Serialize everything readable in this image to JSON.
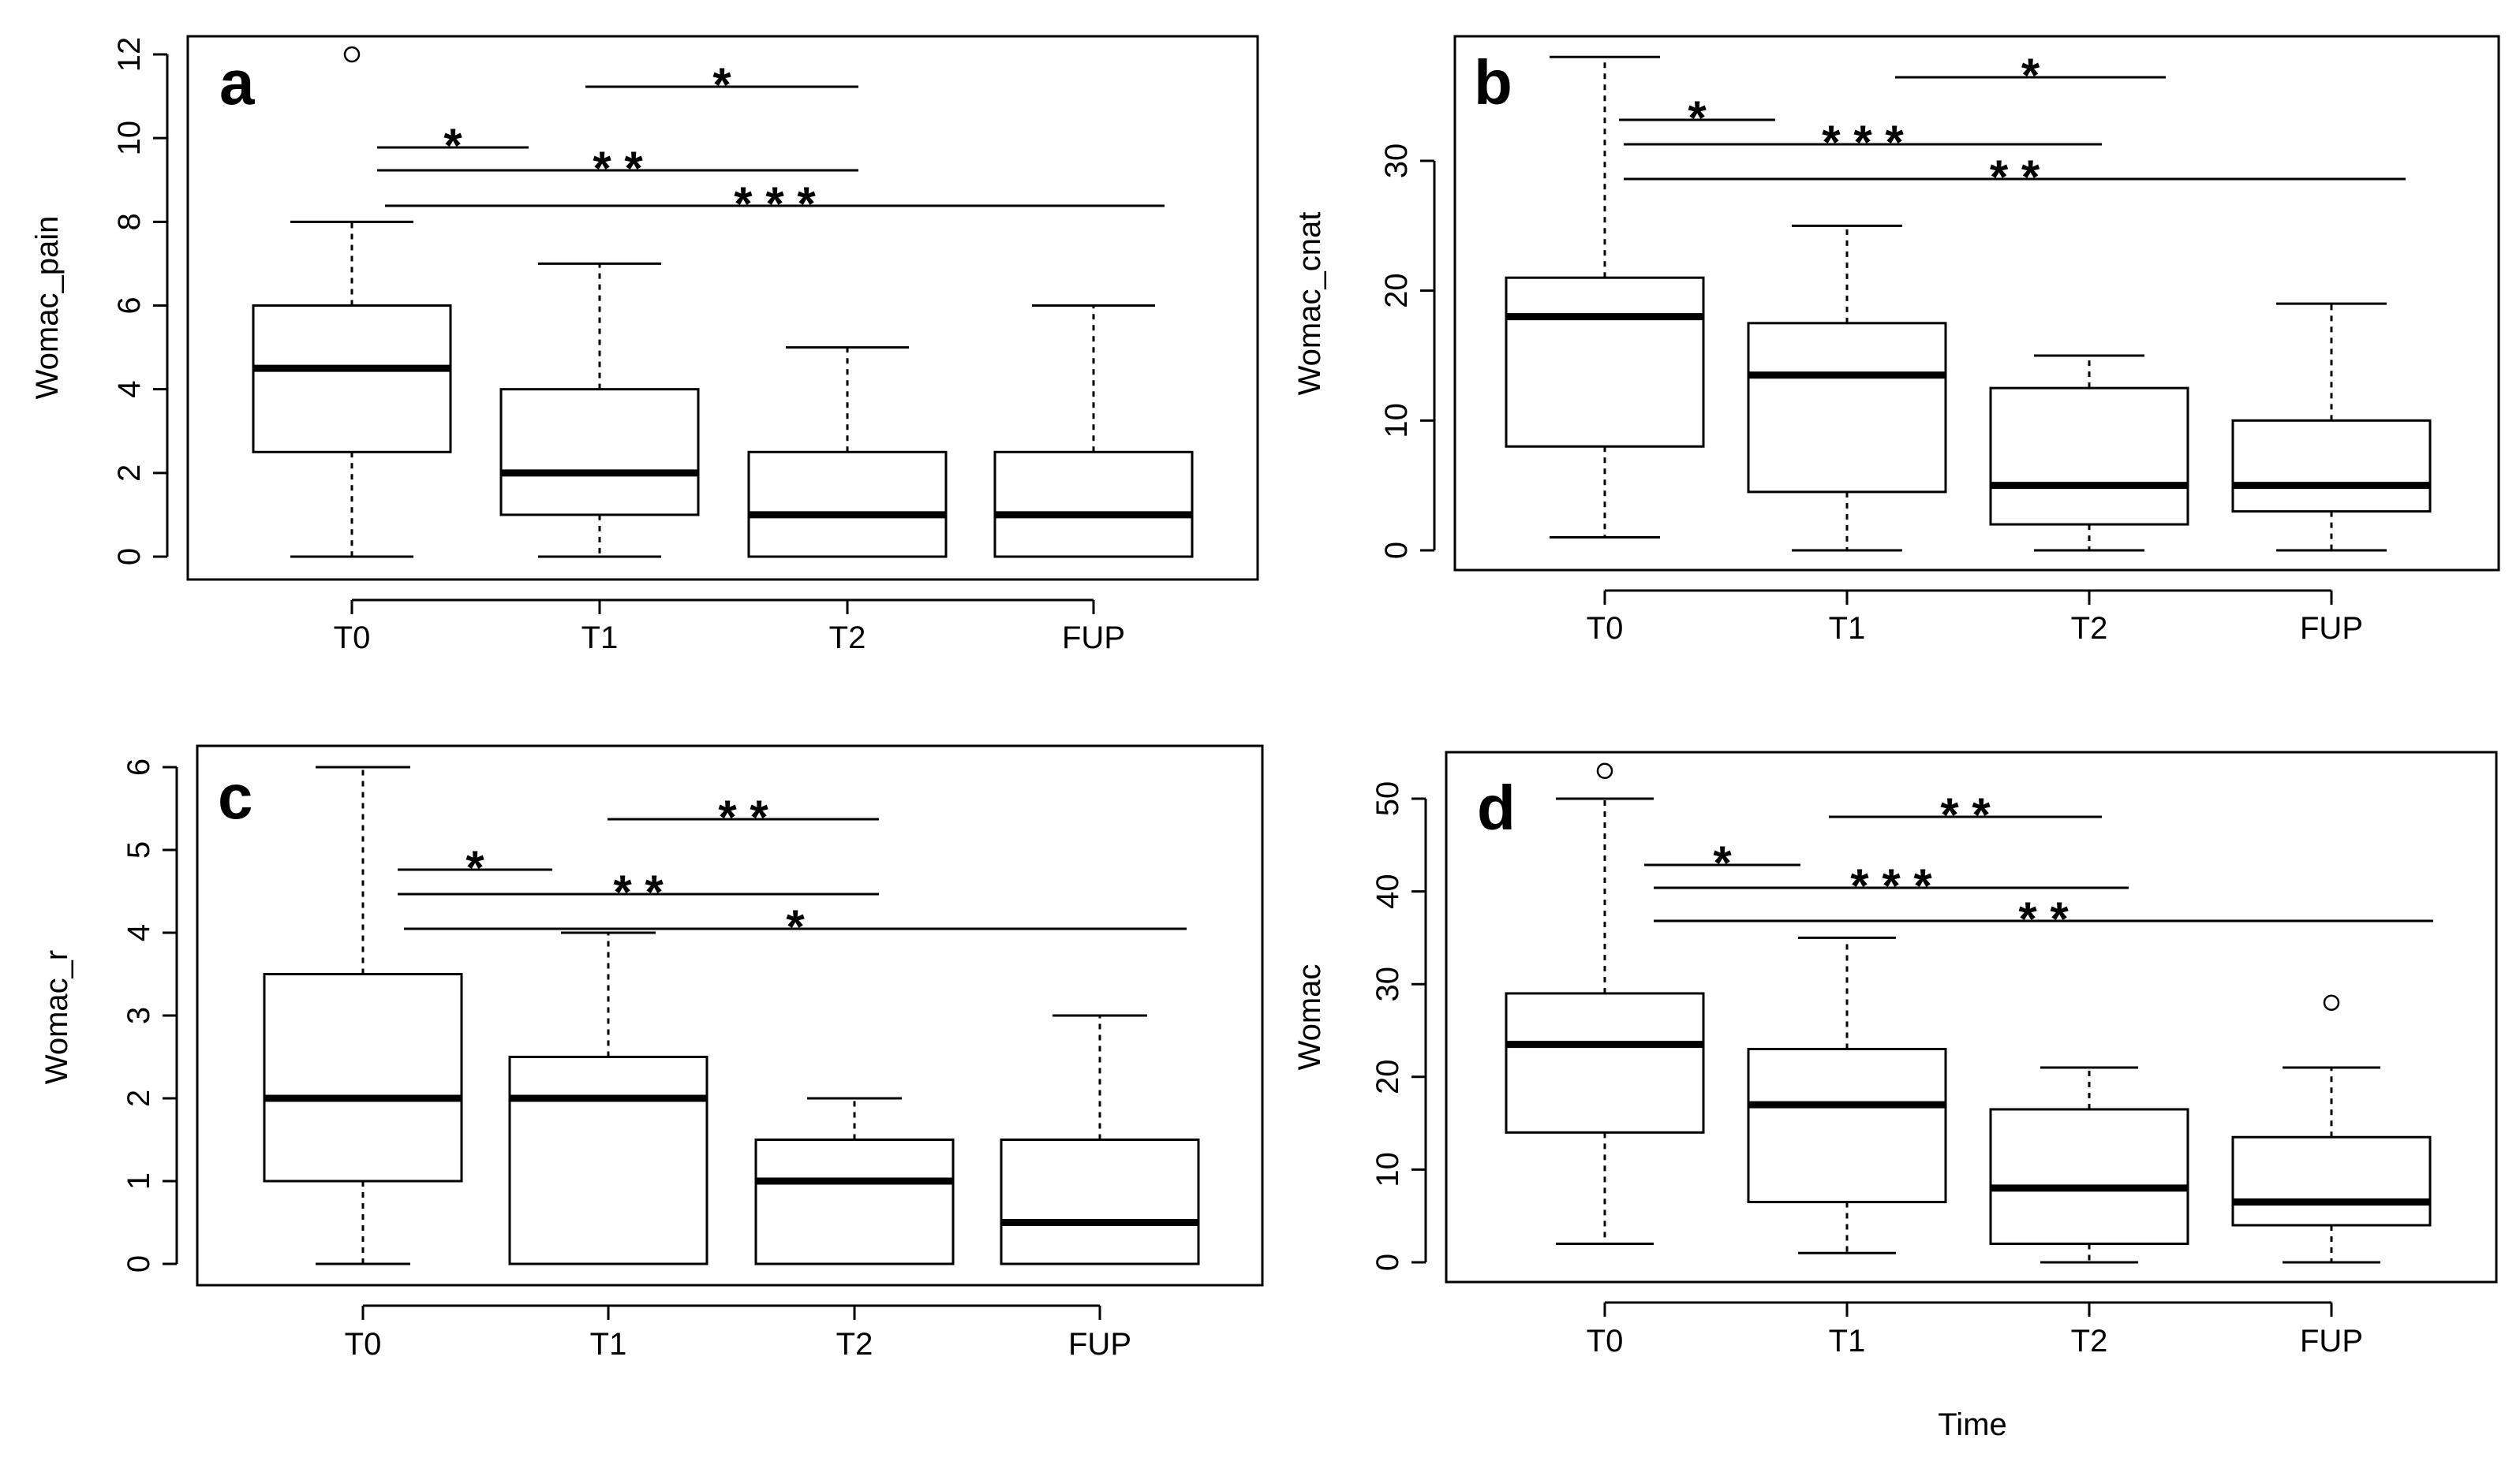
{
  "figure": {
    "shared_xlabel": "Time"
  },
  "chart_data": [
    {
      "type": "box",
      "panel": "a",
      "ylabel": "Womac_pain",
      "categories": [
        "T0",
        "T1",
        "T2",
        "FUP"
      ],
      "ylim": [
        0,
        12
      ],
      "yticks": [
        0,
        2,
        4,
        6,
        8,
        10,
        12
      ],
      "boxes": [
        {
          "min": 0,
          "q1": 2.5,
          "median": 4.5,
          "q3": 6,
          "max": 8,
          "outliers": [
            12
          ]
        },
        {
          "min": 0,
          "q1": 1,
          "median": 2,
          "q3": 4,
          "max": 7,
          "outliers": []
        },
        {
          "min": 0,
          "q1": 0,
          "median": 1,
          "q3": 2.5,
          "max": 5,
          "outliers": []
        },
        {
          "min": 0,
          "q1": 0,
          "median": 1,
          "q3": 2.5,
          "max": 6,
          "outliers": []
        }
      ],
      "significance": [
        {
          "from": "T0",
          "to": "T1",
          "label": "*"
        },
        {
          "from": "T1",
          "to": "T2",
          "label": "*"
        },
        {
          "from": "T0",
          "to": "T2",
          "label": "**"
        },
        {
          "from": "T0",
          "to": "FUP",
          "label": "***"
        }
      ]
    },
    {
      "type": "box",
      "panel": "b",
      "ylabel": "Womac_cnat",
      "categories": [
        "T0",
        "T1",
        "T2",
        "FUP"
      ],
      "ylim": [
        -1,
        38
      ],
      "yticks": [
        0,
        10,
        20,
        30
      ],
      "boxes": [
        {
          "min": 1,
          "q1": 8,
          "median": 18,
          "q3": 21,
          "max": 38,
          "outliers": []
        },
        {
          "min": 0,
          "q1": 4.5,
          "median": 13.5,
          "q3": 17.5,
          "max": 25,
          "outliers": []
        },
        {
          "min": 0,
          "q1": 2,
          "median": 5,
          "q3": 12.5,
          "max": 15,
          "outliers": []
        },
        {
          "min": 0,
          "q1": 3,
          "median": 5,
          "q3": 10,
          "max": 19,
          "outliers": []
        }
      ],
      "significance": [
        {
          "from": "T0",
          "to": "T1",
          "label": "*"
        },
        {
          "from": "T1",
          "to": "T2",
          "label": "*"
        },
        {
          "from": "T0",
          "to": "T2",
          "label": "***"
        },
        {
          "from": "T0",
          "to": "FUP",
          "label": "**"
        }
      ]
    },
    {
      "type": "box",
      "panel": "c",
      "ylabel": "Womac_r",
      "categories": [
        "T0",
        "T1",
        "T2",
        "FUP"
      ],
      "ylim": [
        0,
        6
      ],
      "yticks": [
        0,
        1,
        2,
        3,
        4,
        5,
        6
      ],
      "boxes": [
        {
          "min": 0,
          "q1": 1,
          "median": 2,
          "q3": 3.5,
          "max": 6,
          "outliers": []
        },
        {
          "min": 0,
          "q1": 0,
          "median": 2,
          "q3": 2.5,
          "max": 4,
          "outliers": []
        },
        {
          "min": 0,
          "q1": 0,
          "median": 1,
          "q3": 1.5,
          "max": 2,
          "outliers": []
        },
        {
          "min": 0,
          "q1": 0,
          "median": 0.5,
          "q3": 1.5,
          "max": 3,
          "outliers": []
        }
      ],
      "significance": [
        {
          "from": "T0",
          "to": "T1",
          "label": "*"
        },
        {
          "from": "T1",
          "to": "T2",
          "label": "**"
        },
        {
          "from": "T0",
          "to": "T2",
          "label": "**"
        },
        {
          "from": "T0",
          "to": "FUP",
          "label": "*"
        }
      ]
    },
    {
      "type": "box",
      "panel": "d",
      "ylabel": "Womac",
      "xlabel": "Time",
      "categories": [
        "T0",
        "T1",
        "T2",
        "FUP"
      ],
      "ylim": [
        -2,
        54
      ],
      "yticks": [
        0,
        10,
        20,
        30,
        40,
        50
      ],
      "boxes": [
        {
          "min": 2,
          "q1": 14,
          "median": 23.5,
          "q3": 29,
          "max": 50,
          "outliers": [
            53
          ]
        },
        {
          "min": 1,
          "q1": 6.5,
          "median": 17,
          "q3": 23,
          "max": 35,
          "outliers": []
        },
        {
          "min": 0,
          "q1": 2,
          "median": 8,
          "q3": 16.5,
          "max": 21,
          "outliers": []
        },
        {
          "min": 0,
          "q1": 4,
          "median": 6.5,
          "q3": 13.5,
          "max": 21,
          "outliers": [
            28
          ]
        }
      ],
      "significance": [
        {
          "from": "T0",
          "to": "T1",
          "label": "*"
        },
        {
          "from": "T1",
          "to": "T2",
          "label": "**"
        },
        {
          "from": "T0",
          "to": "T2",
          "label": "***"
        },
        {
          "from": "T0",
          "to": "FUP",
          "label": "**"
        }
      ]
    }
  ]
}
